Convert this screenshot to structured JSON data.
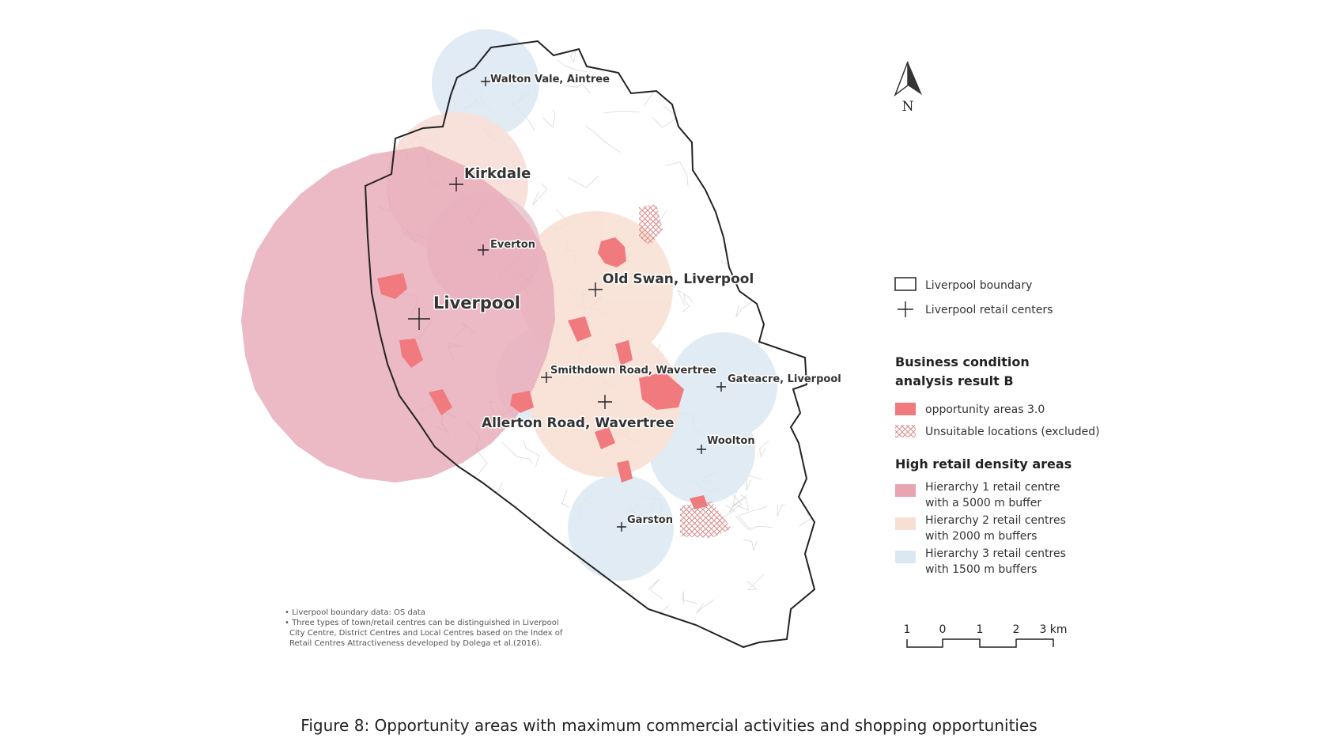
{
  "map": {
    "places": [
      {
        "name": "Walton Vale, Aintree",
        "size": "small"
      },
      {
        "name": "Kirkdale",
        "size": "medium"
      },
      {
        "name": "Everton",
        "size": "small"
      },
      {
        "name": "Liverpool",
        "size": "large"
      },
      {
        "name": "Old Swan, Liverpool",
        "size": "medium"
      },
      {
        "name": "Smithdown Road, Wavertree",
        "size": "small"
      },
      {
        "name": "Gateacre, Liverpool",
        "size": "small"
      },
      {
        "name": "Allerton Road, Wavertree",
        "size": "medium"
      },
      {
        "name": "Woolton",
        "size": "small"
      },
      {
        "name": "Garston",
        "size": "small"
      }
    ],
    "north_label": "N",
    "colors": {
      "boundary": "#222222",
      "hierarchy1": "#e8a5b1",
      "hierarchy2": "#f8dfd3",
      "hierarchy3": "#dbe8f3",
      "opportunity": "#f07a7e",
      "unsuitable": "#d98a8a",
      "ward_lines": "#d8d8d8"
    }
  },
  "legend": {
    "boundary_label": "Liverpool boundary",
    "centers_label": "Liverpool retail centers",
    "section1_title_line1": "Business condition",
    "section1_title_line2": "analysis result B",
    "opportunity_label": "opportunity areas 3.0",
    "unsuitable_label": "Unsuitable locations (excluded)",
    "section2_title": "High retail density areas",
    "h1_line1": "Hierarchy 1 retail centre",
    "h1_line2": "with a 5000 m buffer",
    "h2_line1": "Hierarchy 2 retail centres",
    "h2_line2": "with 2000 m buffers",
    "h3_line1": "Hierarchy 3 retail centres",
    "h3_line2": "with 1500 m buffers"
  },
  "scale_bar": {
    "ticks": [
      "1",
      "0",
      "1",
      "2",
      "3 km"
    ]
  },
  "notes": {
    "line1": "• Liverpool boundary data: OS data",
    "line2": "• Three types of town/retail centres can be distinguished in Liverpool",
    "line3": "City Centre, District Centres and Local Centres based on the Index of",
    "line4": "Retail Centres Attractiveness developed by Dolega et al.(2016)."
  },
  "caption": "Figure 8:   Opportunity areas with maximum commercial activities and shopping opportunities"
}
